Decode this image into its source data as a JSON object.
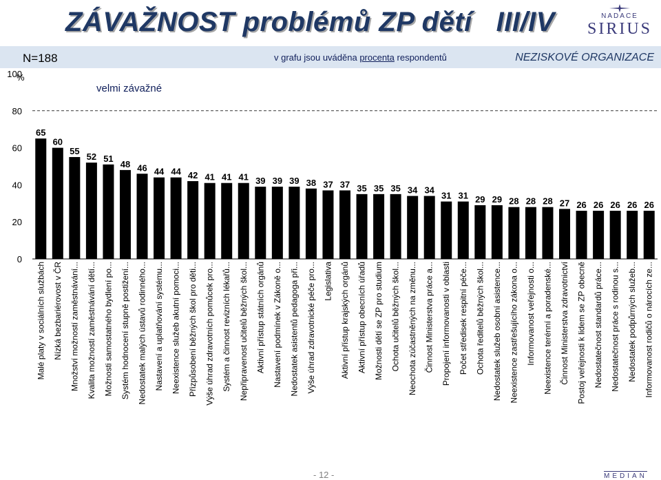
{
  "header": {
    "title": "ZÁVAŽNOST problémů ZP dětí   III/IV",
    "n_label": "N=188",
    "note_prefix": "v grafu jsou uváděna ",
    "note_link": "procenta",
    "note_suffix": " respondentů",
    "org": "NEZISKOVÉ ORGANIZACE"
  },
  "logo_top": {
    "line1": "NADACE",
    "line2": "SIRIUS"
  },
  "logo_bottom": {
    "text": "MEDIAN"
  },
  "footer": {
    "page": "- 12 -"
  },
  "colors": {
    "bar": "#000000",
    "title": "#1f3864",
    "band": "#dbe5f1"
  },
  "chart_data": {
    "type": "bar",
    "title": "",
    "unit_label": "%",
    "subtitle": "velmi závažné",
    "ylim": [
      0,
      100
    ],
    "yticks": [
      0,
      20,
      40,
      60,
      80,
      100
    ],
    "reference_line": 80,
    "categories": [
      "Malé platy v sociálních službách",
      "Nízká bezbariérovost v ČR",
      "Množství možností zaměstnávání...",
      "Kvalita možností zaměstnávání dětí...",
      "Možnosti samostatného bydlení po...",
      "Systém hodnocení stupně postižení...",
      "Nedostatek malých ústavů rodinného...",
      "Nastavení a uplatňování systému...",
      "Neexistence služeb akutní pomoci...",
      "Přizpůsobení běžných škol pro děti...",
      "Výše úhrad zdravotních pomůcek pro...",
      "Systém a činnost revizních lékařů...",
      "Nepřipravenost učitelů běžných škol...",
      "Aktivní přístup státních orgánů",
      "Nastavení podmínek v Zákoně o...",
      "Nedostatek asistentů pedagoga při...",
      "Výše úhrad zdravotnické péče pro...",
      "Legislativa",
      "Aktivní přístup krajských orgánů",
      "Aktivní přístup obecních úřadů",
      "Možnosti dětí se ZP pro studium",
      "Ochota učitelů běžných škol...",
      "Neochota zúčastněných na změnu...",
      "Činnost Ministerstva práce a...",
      "Propojení informovanosti v oblasti",
      "Počet středisek respitní péče...",
      "Ochota ředitelů běžných škol...",
      "Nedostatek služeb osobní asistence...",
      "Neexistence zastřešujícího zákona o...",
      "Informovanost veřejnosti o...",
      "Neexistence terénní a poradenské...",
      "Činnost Ministerstva zdravotnictví",
      "Postoj veřejnosti k lidem se ZP obecně",
      "Nedostatečnost standardů práce...",
      "Nedostatečnost práce s rodinou s...",
      "Nedostatek podpůrných služeb...",
      "Informovanost rodičů o nárocích ze..."
    ],
    "values": [
      65,
      60,
      55,
      52,
      51,
      48,
      46,
      44,
      44,
      42,
      41,
      41,
      41,
      39,
      39,
      39,
      38,
      37,
      37,
      35,
      35,
      35,
      34,
      34,
      31,
      31,
      29,
      29,
      28,
      28,
      28,
      27,
      26,
      26,
      26,
      26,
      26
    ]
  }
}
